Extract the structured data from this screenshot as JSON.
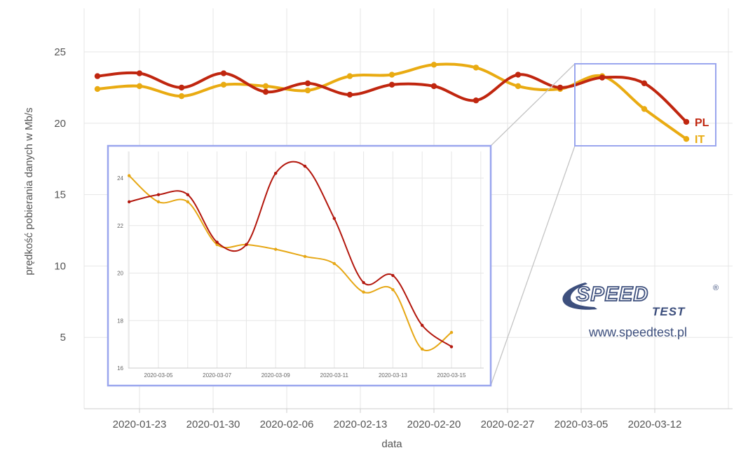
{
  "chart_data": [
    {
      "type": "line",
      "xlabel": "data",
      "ylabel": "prędkość pobierania danych w Mb/s",
      "ylim": [
        0,
        28
      ],
      "yticks": [
        5,
        10,
        15,
        20,
        25
      ],
      "x_tick_labels": [
        "2020-01-23",
        "2020-01-30",
        "2020-02-06",
        "2020-02-13",
        "2020-02-20",
        "2020-02-27",
        "2020-03-05",
        "2020-03-12"
      ],
      "grid": true,
      "legend_placement": "line end labels",
      "x": [
        "2020-01-19",
        "2020-01-23",
        "2020-01-27",
        "2020-01-31",
        "2020-02-04",
        "2020-02-08",
        "2020-02-12",
        "2020-02-16",
        "2020-02-20",
        "2020-02-24",
        "2020-02-28",
        "2020-03-03",
        "2020-03-07",
        "2020-03-11",
        "2020-03-15"
      ],
      "series": [
        {
          "name": "PL",
          "color": "#c0260f",
          "values": [
            23.3,
            23.5,
            22.5,
            23.5,
            22.2,
            22.8,
            22.0,
            22.7,
            22.6,
            21.6,
            23.4,
            22.5,
            23.2,
            22.8,
            20.1
          ]
        },
        {
          "name": "IT",
          "color": "#e9ab12",
          "values": [
            22.4,
            22.6,
            21.9,
            22.7,
            22.6,
            22.3,
            23.3,
            23.4,
            24.1,
            23.9,
            22.6,
            22.4,
            23.3,
            21.0,
            18.9
          ]
        }
      ]
    },
    {
      "type": "line",
      "role": "zoomed inset",
      "ylim": [
        16,
        25
      ],
      "yticks": [
        16,
        18,
        20,
        22,
        24
      ],
      "x_tick_labels": [
        "2020-03-05",
        "2020-03-07",
        "2020-03-09",
        "2020-03-11",
        "2020-03-13",
        "2020-03-15"
      ],
      "grid": true,
      "x": [
        "2020-03-04",
        "2020-03-05",
        "2020-03-06",
        "2020-03-07",
        "2020-03-08",
        "2020-03-09",
        "2020-03-10",
        "2020-03-11",
        "2020-03-12",
        "2020-03-13",
        "2020-03-14",
        "2020-03-15"
      ],
      "series": [
        {
          "color": "#b3170d",
          "values": [
            23.0,
            23.3,
            23.3,
            21.3,
            21.2,
            24.2,
            24.5,
            22.3,
            19.6,
            19.9,
            17.8,
            16.9
          ]
        },
        {
          "color": "#e6a714",
          "values": [
            24.1,
            23.0,
            23.0,
            21.2,
            21.2,
            21.0,
            20.7,
            20.4,
            19.2,
            19.3,
            16.8,
            17.5
          ]
        }
      ]
    }
  ],
  "logo": {
    "brand_top": "SPEED",
    "brand_bottom": "TEST",
    "registered": "®",
    "url": "www.speedtest.pl",
    "color": "#3d4f7d"
  },
  "colors": {
    "grid": "#e6e6e6",
    "zoom_box": "#9aa6ee",
    "connector": "#c4c4c4"
  }
}
